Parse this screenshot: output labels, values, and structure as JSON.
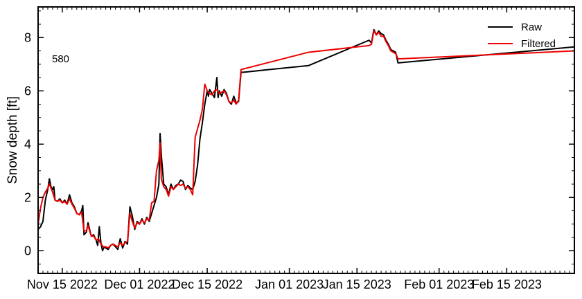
{
  "chart_data": {
    "type": "line",
    "title": "",
    "xlabel": "",
    "ylabel": "Snow depth [ft]",
    "annotation": "580",
    "xlim": [
      "2022-11-10",
      "2023-03-01"
    ],
    "ylim": [
      -0.85,
      9.15
    ],
    "yticks": [
      0,
      2,
      4,
      6,
      8
    ],
    "xticks": [
      {
        "date": "2022-11-15",
        "label": "Nov 15 2022"
      },
      {
        "date": "2022-12-01",
        "label": "Dec 01 2022"
      },
      {
        "date": "2022-12-15",
        "label": "Dec 15 2022"
      },
      {
        "date": "2023-01-01",
        "label": "Jan 01 2023"
      },
      {
        "date": "2023-01-15",
        "label": "Jan 15 2023"
      },
      {
        "date": "2023-02-01",
        "label": "Feb 01 2023"
      },
      {
        "date": "2023-02-15",
        "label": "Feb 15 2023"
      }
    ],
    "legend_position": "top-right",
    "grid": false,
    "series": [
      {
        "name": "Raw",
        "color": "#000000",
        "points": [
          [
            "2022-11-10 00:00",
            0.8
          ],
          [
            "2022-11-10 12:00",
            0.9
          ],
          [
            "2022-11-11 00:00",
            1.1
          ],
          [
            "2022-11-11 12:00",
            1.9
          ],
          [
            "2022-11-12 00:00",
            2.3
          ],
          [
            "2022-11-12 08:00",
            2.7
          ],
          [
            "2022-11-12 16:00",
            2.4
          ],
          [
            "2022-11-13 00:00",
            2.3
          ],
          [
            "2022-11-13 06:00",
            2.4
          ],
          [
            "2022-11-13 12:00",
            1.9
          ],
          [
            "2022-11-14 00:00",
            1.85
          ],
          [
            "2022-11-14 12:00",
            1.95
          ],
          [
            "2022-11-15 00:00",
            1.8
          ],
          [
            "2022-11-15 12:00",
            1.9
          ],
          [
            "2022-11-16 00:00",
            1.75
          ],
          [
            "2022-11-16 12:00",
            2.1
          ],
          [
            "2022-11-17 00:00",
            1.8
          ],
          [
            "2022-11-17 12:00",
            1.65
          ],
          [
            "2022-11-18 00:00",
            1.4
          ],
          [
            "2022-11-18 12:00",
            1.35
          ],
          [
            "2022-11-19 00:00",
            1.5
          ],
          [
            "2022-11-19 06:00",
            1.7
          ],
          [
            "2022-11-19 12:00",
            0.6
          ],
          [
            "2022-11-20 00:00",
            0.7
          ],
          [
            "2022-11-20 08:00",
            1.05
          ],
          [
            "2022-11-20 16:00",
            0.8
          ],
          [
            "2022-11-21 00:00",
            0.55
          ],
          [
            "2022-11-21 12:00",
            0.6
          ],
          [
            "2022-11-22 00:00",
            0.4
          ],
          [
            "2022-11-22 08:00",
            0.2
          ],
          [
            "2022-11-22 16:00",
            0.9
          ],
          [
            "2022-11-23 00:00",
            0.3
          ],
          [
            "2022-11-23 08:00",
            0.0
          ],
          [
            "2022-11-23 16:00",
            0.15
          ],
          [
            "2022-11-24 00:00",
            0.1
          ],
          [
            "2022-11-24 12:00",
            0.05
          ],
          [
            "2022-11-25 00:00",
            0.2
          ],
          [
            "2022-11-25 12:00",
            0.25
          ],
          [
            "2022-11-26 00:00",
            0.15
          ],
          [
            "2022-11-26 12:00",
            0.05
          ],
          [
            "2022-11-27 00:00",
            0.45
          ],
          [
            "2022-11-27 12:00",
            0.1
          ],
          [
            "2022-11-28 00:00",
            0.35
          ],
          [
            "2022-11-28 12:00",
            0.25
          ],
          [
            "2022-11-29 00:00",
            1.65
          ],
          [
            "2022-11-29 12:00",
            1.3
          ],
          [
            "2022-11-30 00:00",
            0.8
          ],
          [
            "2022-11-30 12:00",
            1.1
          ],
          [
            "2022-12-01 00:00",
            1.0
          ],
          [
            "2022-12-01 12:00",
            1.2
          ],
          [
            "2022-12-02 00:00",
            1.0
          ],
          [
            "2022-12-02 12:00",
            1.25
          ],
          [
            "2022-12-03 00:00",
            1.1
          ],
          [
            "2022-12-03 12:00",
            1.4
          ],
          [
            "2022-12-04 00:00",
            1.7
          ],
          [
            "2022-12-04 12:00",
            2.0
          ],
          [
            "2022-12-05 00:00",
            2.5
          ],
          [
            "2022-12-05 06:00",
            4.4
          ],
          [
            "2022-12-05 12:00",
            3.6
          ],
          [
            "2022-12-06 00:00",
            2.5
          ],
          [
            "2022-12-06 12:00",
            2.4
          ],
          [
            "2022-12-07 00:00",
            2.1
          ],
          [
            "2022-12-07 12:00",
            2.5
          ],
          [
            "2022-12-08 00:00",
            2.3
          ],
          [
            "2022-12-08 12:00",
            2.45
          ],
          [
            "2022-12-09 00:00",
            2.5
          ],
          [
            "2022-12-09 12:00",
            2.65
          ],
          [
            "2022-12-10 00:00",
            2.6
          ],
          [
            "2022-12-10 12:00",
            2.3
          ],
          [
            "2022-12-11 00:00",
            2.45
          ],
          [
            "2022-12-11 12:00",
            2.35
          ],
          [
            "2022-12-12 00:00",
            2.3
          ],
          [
            "2022-12-12 12:00",
            2.6
          ],
          [
            "2022-12-13 00:00",
            3.2
          ],
          [
            "2022-12-13 12:00",
            4.2
          ],
          [
            "2022-12-14 00:00",
            4.8
          ],
          [
            "2022-12-14 12:00",
            5.5
          ],
          [
            "2022-12-15 00:00",
            6.0
          ],
          [
            "2022-12-15 06:00",
            5.8
          ],
          [
            "2022-12-15 12:00",
            6.05
          ],
          [
            "2022-12-16 00:00",
            5.9
          ],
          [
            "2022-12-16 12:00",
            5.75
          ],
          [
            "2022-12-17 00:00",
            6.5
          ],
          [
            "2022-12-17 06:00",
            5.75
          ],
          [
            "2022-12-17 12:00",
            6.0
          ],
          [
            "2022-12-18 00:00",
            5.8
          ],
          [
            "2022-12-18 12:00",
            6.05
          ],
          [
            "2022-12-19 00:00",
            5.9
          ],
          [
            "2022-12-19 12:00",
            5.6
          ],
          [
            "2022-12-20 00:00",
            5.5
          ],
          [
            "2022-12-20 12:00",
            5.8
          ],
          [
            "2022-12-21 00:00",
            5.55
          ],
          [
            "2022-12-21 12:00",
            5.6
          ],
          [
            "2022-12-22 00:00",
            6.7
          ],
          [
            "2022-12-22 12:00",
            6.7
          ],
          [
            "2023-01-05 00:00",
            6.95
          ],
          [
            "2023-01-17 12:00",
            7.9
          ],
          [
            "2023-01-18 00:00",
            7.8
          ],
          [
            "2023-01-18 12:00",
            8.3
          ],
          [
            "2023-01-19 00:00",
            8.1
          ],
          [
            "2023-01-19 12:00",
            8.25
          ],
          [
            "2023-01-20 00:00",
            8.15
          ],
          [
            "2023-01-20 12:00",
            8.1
          ],
          [
            "2023-01-21 00:00",
            7.9
          ],
          [
            "2023-01-21 12:00",
            7.75
          ],
          [
            "2023-01-22 00:00",
            7.55
          ],
          [
            "2023-01-22 12:00",
            7.5
          ],
          [
            "2023-01-23 00:00",
            7.45
          ],
          [
            "2023-01-23 12:00",
            7.05
          ],
          [
            "2023-03-01 00:00",
            7.65
          ]
        ]
      },
      {
        "name": "Filtered",
        "color": "#ee0000",
        "points": [
          [
            "2022-11-10 00:00",
            1.0
          ],
          [
            "2022-11-10 12:00",
            1.6
          ],
          [
            "2022-11-11 00:00",
            2.0
          ],
          [
            "2022-11-11 12:00",
            2.2
          ],
          [
            "2022-11-12 00:00",
            2.35
          ],
          [
            "2022-11-12 08:00",
            2.5
          ],
          [
            "2022-11-12 16:00",
            2.35
          ],
          [
            "2022-11-13 00:00",
            2.2
          ],
          [
            "2022-11-13 12:00",
            1.9
          ],
          [
            "2022-11-14 00:00",
            1.85
          ],
          [
            "2022-11-14 12:00",
            1.9
          ],
          [
            "2022-11-15 00:00",
            1.8
          ],
          [
            "2022-11-15 12:00",
            1.85
          ],
          [
            "2022-11-16 00:00",
            1.75
          ],
          [
            "2022-11-16 12:00",
            1.95
          ],
          [
            "2022-11-17 00:00",
            1.75
          ],
          [
            "2022-11-17 12:00",
            1.6
          ],
          [
            "2022-11-18 00:00",
            1.4
          ],
          [
            "2022-11-18 12:00",
            1.35
          ],
          [
            "2022-11-19 00:00",
            1.45
          ],
          [
            "2022-11-19 12:00",
            0.75
          ],
          [
            "2022-11-20 00:00",
            0.75
          ],
          [
            "2022-11-20 08:00",
            0.95
          ],
          [
            "2022-11-20 16:00",
            0.75
          ],
          [
            "2022-11-21 00:00",
            0.55
          ],
          [
            "2022-11-21 12:00",
            0.55
          ],
          [
            "2022-11-22 00:00",
            0.4
          ],
          [
            "2022-11-22 12:00",
            0.45
          ],
          [
            "2022-11-23 00:00",
            0.25
          ],
          [
            "2022-11-23 12:00",
            0.15
          ],
          [
            "2022-11-24 00:00",
            0.15
          ],
          [
            "2022-11-24 12:00",
            0.1
          ],
          [
            "2022-11-25 00:00",
            0.2
          ],
          [
            "2022-11-25 12:00",
            0.25
          ],
          [
            "2022-11-26 00:00",
            0.2
          ],
          [
            "2022-11-26 12:00",
            0.15
          ],
          [
            "2022-11-27 00:00",
            0.3
          ],
          [
            "2022-11-27 12:00",
            0.2
          ],
          [
            "2022-11-28 00:00",
            0.3
          ],
          [
            "2022-11-28 12:00",
            0.35
          ],
          [
            "2022-11-29 00:00",
            1.4
          ],
          [
            "2022-11-29 12:00",
            1.1
          ],
          [
            "2022-11-30 00:00",
            0.85
          ],
          [
            "2022-11-30 12:00",
            1.05
          ],
          [
            "2022-12-01 00:00",
            1.0
          ],
          [
            "2022-12-01 12:00",
            1.15
          ],
          [
            "2022-12-02 00:00",
            1.05
          ],
          [
            "2022-12-02 12:00",
            1.2
          ],
          [
            "2022-12-03 00:00",
            1.15
          ],
          [
            "2022-12-03 12:00",
            1.8
          ],
          [
            "2022-12-04 00:00",
            1.85
          ],
          [
            "2022-12-04 12:00",
            3.0
          ],
          [
            "2022-12-05 00:00",
            3.4
          ],
          [
            "2022-12-05 06:00",
            4.05
          ],
          [
            "2022-12-05 12:00",
            2.7
          ],
          [
            "2022-12-06 00:00",
            2.4
          ],
          [
            "2022-12-06 12:00",
            2.3
          ],
          [
            "2022-12-07 00:00",
            2.05
          ],
          [
            "2022-12-07 12:00",
            2.4
          ],
          [
            "2022-12-08 00:00",
            2.3
          ],
          [
            "2022-12-08 12:00",
            2.4
          ],
          [
            "2022-12-09 00:00",
            2.5
          ],
          [
            "2022-12-09 12:00",
            2.45
          ],
          [
            "2022-12-10 00:00",
            2.5
          ],
          [
            "2022-12-10 12:00",
            2.35
          ],
          [
            "2022-12-11 00:00",
            2.4
          ],
          [
            "2022-12-11 12:00",
            2.3
          ],
          [
            "2022-12-12 00:00",
            2.1
          ],
          [
            "2022-12-12 12:00",
            4.25
          ],
          [
            "2022-12-13 12:00",
            4.9
          ],
          [
            "2022-12-14 00:00",
            5.3
          ],
          [
            "2022-12-14 12:00",
            6.25
          ],
          [
            "2022-12-15 00:00",
            6.0
          ],
          [
            "2022-12-15 12:00",
            5.9
          ],
          [
            "2022-12-16 00:00",
            5.85
          ],
          [
            "2022-12-16 12:00",
            6.0
          ],
          [
            "2022-12-17 00:00",
            6.05
          ],
          [
            "2022-12-17 12:00",
            5.9
          ],
          [
            "2022-12-18 00:00",
            5.95
          ],
          [
            "2022-12-18 12:00",
            6.0
          ],
          [
            "2022-12-19 00:00",
            5.85
          ],
          [
            "2022-12-19 12:00",
            5.6
          ],
          [
            "2022-12-20 00:00",
            5.55
          ],
          [
            "2022-12-20 12:00",
            5.65
          ],
          [
            "2022-12-21 00:00",
            5.5
          ],
          [
            "2022-12-21 12:00",
            5.65
          ],
          [
            "2022-12-22 00:00",
            6.8
          ],
          [
            "2023-01-05 00:00",
            7.45
          ],
          [
            "2023-01-17 12:00",
            7.7
          ],
          [
            "2023-01-18 00:00",
            7.75
          ],
          [
            "2023-01-18 12:00",
            8.25
          ],
          [
            "2023-01-19 00:00",
            8.1
          ],
          [
            "2023-01-19 12:00",
            8.2
          ],
          [
            "2023-01-20 00:00",
            8.05
          ],
          [
            "2023-01-20 12:00",
            8.05
          ],
          [
            "2023-01-21 00:00",
            7.85
          ],
          [
            "2023-01-21 12:00",
            7.7
          ],
          [
            "2023-01-22 00:00",
            7.5
          ],
          [
            "2023-01-22 12:00",
            7.45
          ],
          [
            "2023-01-23 00:00",
            7.4
          ],
          [
            "2023-01-23 12:00",
            7.2
          ],
          [
            "2023-03-01 00:00",
            7.5
          ]
        ]
      }
    ]
  }
}
